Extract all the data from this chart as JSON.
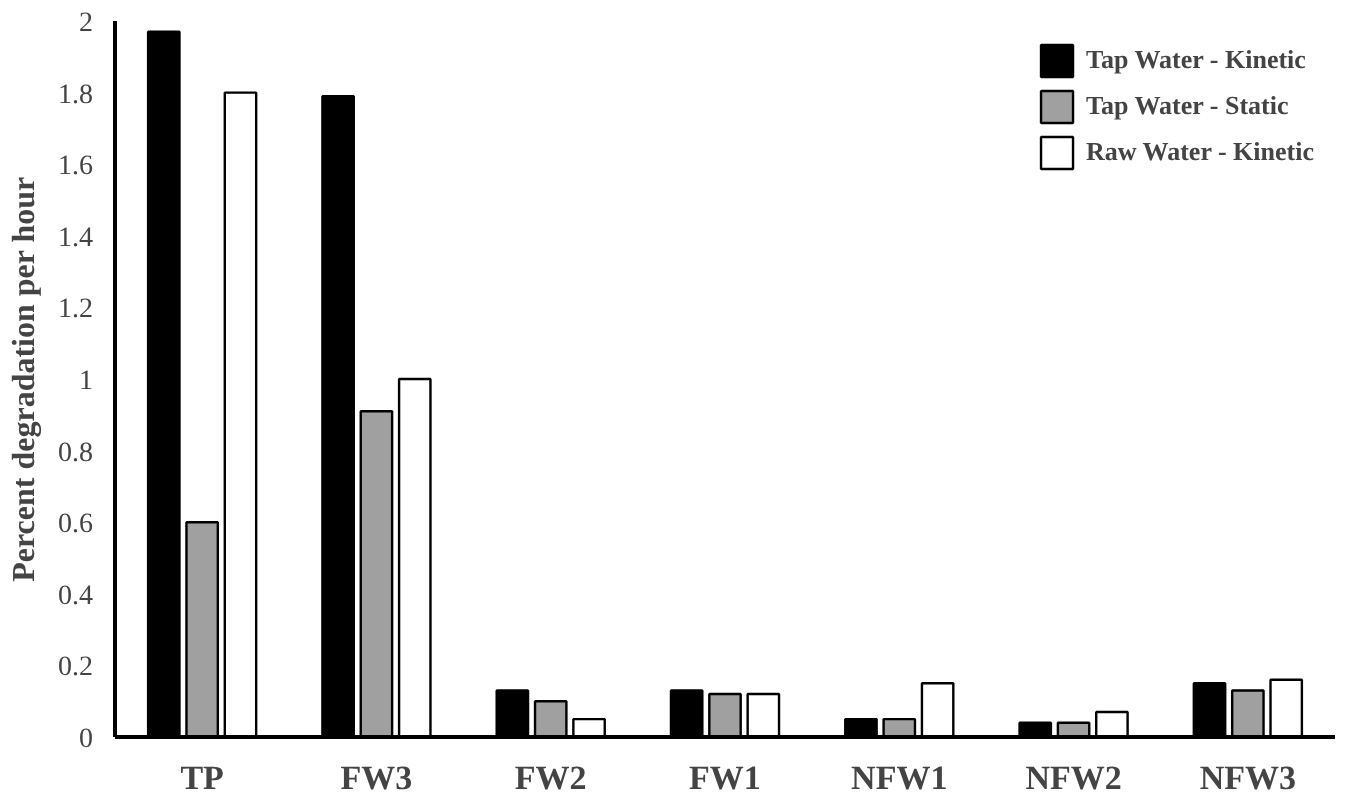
{
  "chart_data": {
    "type": "bar",
    "ylabel": "Percent degradation per hour",
    "categories": [
      "TP",
      "FW3",
      "FW2",
      "FW1",
      "NFW1",
      "NFW2",
      "NFW3"
    ],
    "series": [
      {
        "name": "Tap Water - Kinetic",
        "color": "#000000",
        "values": [
          1.97,
          1.79,
          0.13,
          0.13,
          0.05,
          0.04,
          0.15
        ]
      },
      {
        "name": "Tap Water - Static",
        "color": "#a0a0a0",
        "values": [
          0.6,
          0.91,
          0.1,
          0.12,
          0.05,
          0.04,
          0.13
        ]
      },
      {
        "name": "Raw Water - Kinetic",
        "color": "#ffffff",
        "values": [
          1.8,
          1.0,
          0.05,
          0.12,
          0.15,
          0.07,
          0.16
        ]
      }
    ],
    "ylim": [
      0,
      2
    ],
    "yticks": [
      0,
      0.2,
      0.4,
      0.6,
      0.8,
      1,
      1.2,
      1.4,
      1.6,
      1.8,
      2
    ],
    "grid": false,
    "legend": "top right"
  }
}
